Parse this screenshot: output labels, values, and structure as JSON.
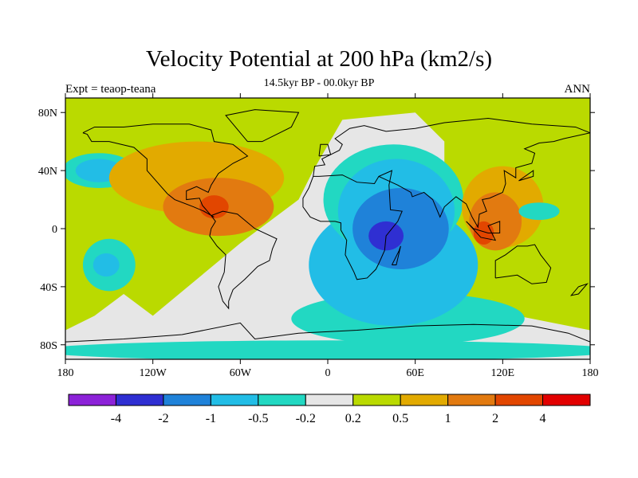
{
  "chart_data": {
    "type": "heatmap",
    "title": "Velocity Potential at 200 hPa (km2/s)",
    "subtitle": "14.5kyr BP - 00.0kyr BP",
    "left_label": "Expt = teaop-teana",
    "right_label": "ANN",
    "x_ticks": [
      {
        "value": -180,
        "label": "180"
      },
      {
        "value": -120,
        "label": "120W"
      },
      {
        "value": -60,
        "label": "60W"
      },
      {
        "value": 0,
        "label": "0"
      },
      {
        "value": 60,
        "label": "60E"
      },
      {
        "value": 120,
        "label": "120E"
      },
      {
        "value": 180,
        "label": "180"
      }
    ],
    "y_ticks": [
      {
        "value": 80,
        "label": "80N"
      },
      {
        "value": 40,
        "label": "40N"
      },
      {
        "value": 0,
        "label": "0"
      },
      {
        "value": -40,
        "label": "40S"
      },
      {
        "value": -80,
        "label": "80S"
      }
    ],
    "xlim": [
      -180,
      180
    ],
    "ylim": [
      -90,
      90
    ],
    "contour_levels": [
      -4,
      -2,
      -1,
      -0.5,
      -0.2,
      0.2,
      0.5,
      1,
      2,
      4
    ],
    "colorbar_labels": [
      "-4",
      "-2",
      "-1",
      "-0.5",
      "-0.2",
      "0.2",
      "0.5",
      "1",
      "2",
      "4"
    ],
    "colorbar_colors": [
      "#8c22d8",
      "#2f2fd2",
      "#1f82d9",
      "#22bde6",
      "#22d8c2",
      "#e6e6e6",
      "#bada00",
      "#e2aa00",
      "#e27a10",
      "#e24600",
      "#e20000"
    ],
    "regions": [
      {
        "name": "south-polar-band",
        "class": 4,
        "cx": 0,
        "cy": -84,
        "rx": 200,
        "ry": 7
      },
      {
        "name": "south-atlantic-indian-band",
        "class": 4,
        "cx": 55,
        "cy": -62,
        "rx": 80,
        "ry": 18
      },
      {
        "name": "indian-ocean-mid",
        "class": 3,
        "cx": 45,
        "cy": -25,
        "rx": 58,
        "ry": 42
      },
      {
        "name": "africa-low",
        "class": 4,
        "cx": 45,
        "cy": 20,
        "rx": 48,
        "ry": 38
      },
      {
        "name": "africa-core",
        "class": 3,
        "cx": 47,
        "cy": 12,
        "rx": 40,
        "ry": 36
      },
      {
        "name": "africa-deep",
        "class": 2,
        "cx": 50,
        "cy": 0,
        "rx": 33,
        "ry": 28
      },
      {
        "name": "africa-center",
        "class": 1,
        "cx": 40,
        "cy": -5,
        "rx": 12,
        "ry": 10
      },
      {
        "name": "north-pacific-low",
        "class": 4,
        "cx": -157,
        "cy": 40,
        "rx": 25,
        "ry": 12
      },
      {
        "name": "north-pacific-core",
        "class": 3,
        "cx": -157,
        "cy": 40,
        "rx": 16,
        "ry": 8
      },
      {
        "name": "south-pacific-low",
        "class": 4,
        "cx": -150,
        "cy": -25,
        "rx": 18,
        "ry": 18
      },
      {
        "name": "south-pacific-core",
        "class": 3,
        "cx": -152,
        "cy": -25,
        "rx": 9,
        "ry": 8
      },
      {
        "name": "atlantic-high",
        "class": 7,
        "cx": -90,
        "cy": 35,
        "rx": 60,
        "ry": 25
      },
      {
        "name": "caribbean-high",
        "class": 8,
        "cx": -75,
        "cy": 15,
        "rx": 38,
        "ry": 20
      },
      {
        "name": "caribbean-core",
        "class": 9,
        "cx": -78,
        "cy": 15,
        "rx": 10,
        "ry": 8
      },
      {
        "name": "warm-pool-high",
        "class": 7,
        "cx": 120,
        "cy": 15,
        "rx": 28,
        "ry": 28
      },
      {
        "name": "warm-pool-core",
        "class": 8,
        "cx": 115,
        "cy": 5,
        "rx": 18,
        "ry": 20
      },
      {
        "name": "maritime-core",
        "class": 9,
        "cx": 107,
        "cy": -3,
        "rx": 7,
        "ry": 8
      },
      {
        "name": "west-pacific-low",
        "class": 4,
        "cx": 145,
        "cy": 12,
        "rx": 14,
        "ry": 6
      }
    ]
  }
}
